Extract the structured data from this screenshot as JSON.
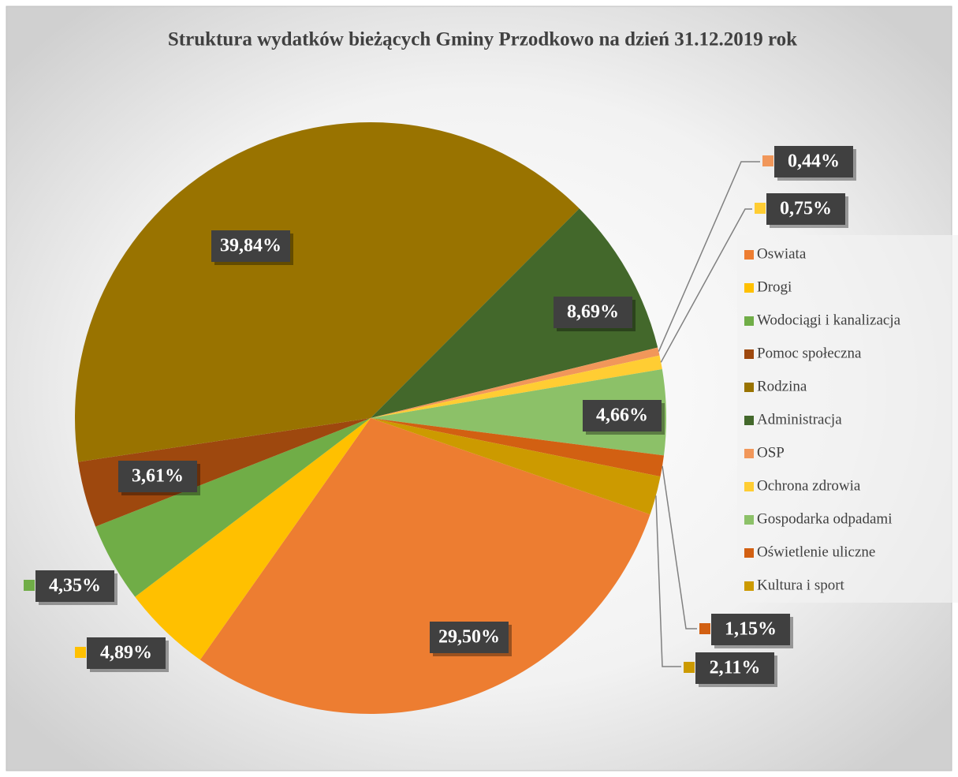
{
  "chart_data": {
    "type": "pie",
    "title": "Struktura wydatków bieżących Gminy Przodkowo na dzień 31.12.2019 rok",
    "categories": [
      "Oswiata",
      "Drogi",
      "Wodociągi i kanalizacja",
      "Pomoc społeczna",
      "Rodzina",
      "Administracja",
      "OSP",
      "Ochrona zdrowia",
      "Gospodarka odpadami",
      "Oświetlenie uliczne",
      "Kultura i sport"
    ],
    "values": [
      29.5,
      4.89,
      4.35,
      3.61,
      39.84,
      8.69,
      0.44,
      0.75,
      4.66,
      1.15,
      2.11
    ],
    "value_labels": [
      "29,50%",
      "4,89%",
      "4,35%",
      "3,61%",
      "39,84%",
      "8,69%",
      "0,44%",
      "0,75%",
      "4,66%",
      "1,15%",
      "2,11%"
    ],
    "colors": [
      "#ed7d31",
      "#ffc000",
      "#70ad47",
      "#9e480e",
      "#997300",
      "#43682b",
      "#f1975a",
      "#ffcd33",
      "#8cc168",
      "#d26012",
      "#cc9a00"
    ],
    "legend": "right"
  }
}
